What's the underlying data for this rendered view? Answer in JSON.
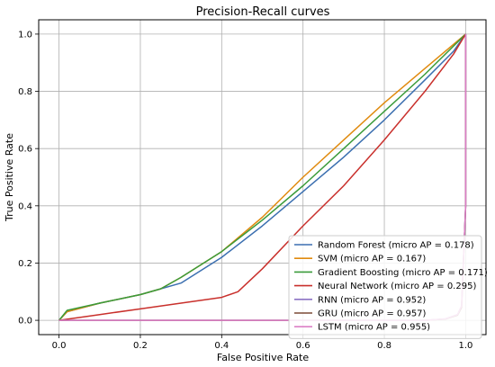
{
  "chart_data": {
    "type": "line",
    "title": "Precision-Recall curves",
    "xlabel": "False Positive Rate",
    "ylabel": "True Positive Rate",
    "xlim": [
      -0.05,
      1.05
    ],
    "ylim": [
      -0.05,
      1.05
    ],
    "x_ticks": [
      "0.0",
      "0.2",
      "0.4",
      "0.6",
      "0.8",
      "1.0"
    ],
    "y_ticks": [
      "0.0",
      "0.2",
      "0.4",
      "0.6",
      "0.8",
      "1.0"
    ],
    "grid": true,
    "legend_position": "lower-right",
    "series": [
      {
        "name": "Random Forest (micro AP = 0.178)",
        "color": "#3b6fb0",
        "x": [
          0,
          0.02,
          0.1,
          0.2,
          0.3,
          0.4,
          0.5,
          0.6,
          0.7,
          0.8,
          0.9,
          0.97,
          1.0
        ],
        "y": [
          0,
          0.03,
          0.06,
          0.09,
          0.13,
          0.22,
          0.33,
          0.45,
          0.57,
          0.7,
          0.84,
          0.94,
          1.0
        ]
      },
      {
        "name": "SVM (micro AP = 0.167)",
        "color": "#e08a0e",
        "x": [
          0,
          0.02,
          0.1,
          0.2,
          0.25,
          0.3,
          0.4,
          0.5,
          0.6,
          0.7,
          0.8,
          0.9,
          1.0
        ],
        "y": [
          0,
          0.03,
          0.06,
          0.09,
          0.11,
          0.15,
          0.24,
          0.36,
          0.5,
          0.63,
          0.76,
          0.88,
          1.0
        ]
      },
      {
        "name": "Gradient Boosting (micro AP = 0.171)",
        "color": "#3a9b3a",
        "x": [
          0,
          0.02,
          0.1,
          0.2,
          0.25,
          0.3,
          0.4,
          0.5,
          0.6,
          0.7,
          0.8,
          0.9,
          1.0
        ],
        "y": [
          0,
          0.035,
          0.06,
          0.09,
          0.11,
          0.15,
          0.24,
          0.35,
          0.47,
          0.6,
          0.73,
          0.86,
          1.0
        ]
      },
      {
        "name": "Neural Network (micro AP = 0.295)",
        "color": "#c9302c",
        "x": [
          0,
          0.1,
          0.2,
          0.3,
          0.4,
          0.44,
          0.5,
          0.6,
          0.7,
          0.8,
          0.9,
          0.97,
          1.0
        ],
        "y": [
          0,
          0.02,
          0.04,
          0.06,
          0.08,
          0.1,
          0.18,
          0.33,
          0.47,
          0.63,
          0.8,
          0.93,
          1.0
        ]
      },
      {
        "name": "RNN (micro AP = 0.952)",
        "color": "#8c73c4",
        "x": [
          0,
          0.5,
          0.9,
          0.95,
          0.98,
          0.99,
          1.0,
          1.0
        ],
        "y": [
          0,
          0,
          0,
          0.005,
          0.02,
          0.05,
          0.4,
          1.0
        ]
      },
      {
        "name": "GRU (micro AP = 0.957)",
        "color": "#7b4a36",
        "x": [
          0,
          0.5,
          0.9,
          0.95,
          0.98,
          0.99,
          1.0,
          1.0
        ],
        "y": [
          0,
          0,
          0,
          0.004,
          0.018,
          0.045,
          0.4,
          1.0
        ]
      },
      {
        "name": "LSTM (micro AP = 0.955)",
        "color": "#dc7fc6",
        "x": [
          0,
          0.5,
          0.9,
          0.95,
          0.98,
          0.99,
          1.0,
          1.0
        ],
        "y": [
          0,
          0,
          0,
          0.005,
          0.02,
          0.05,
          0.4,
          1.0
        ]
      }
    ]
  }
}
